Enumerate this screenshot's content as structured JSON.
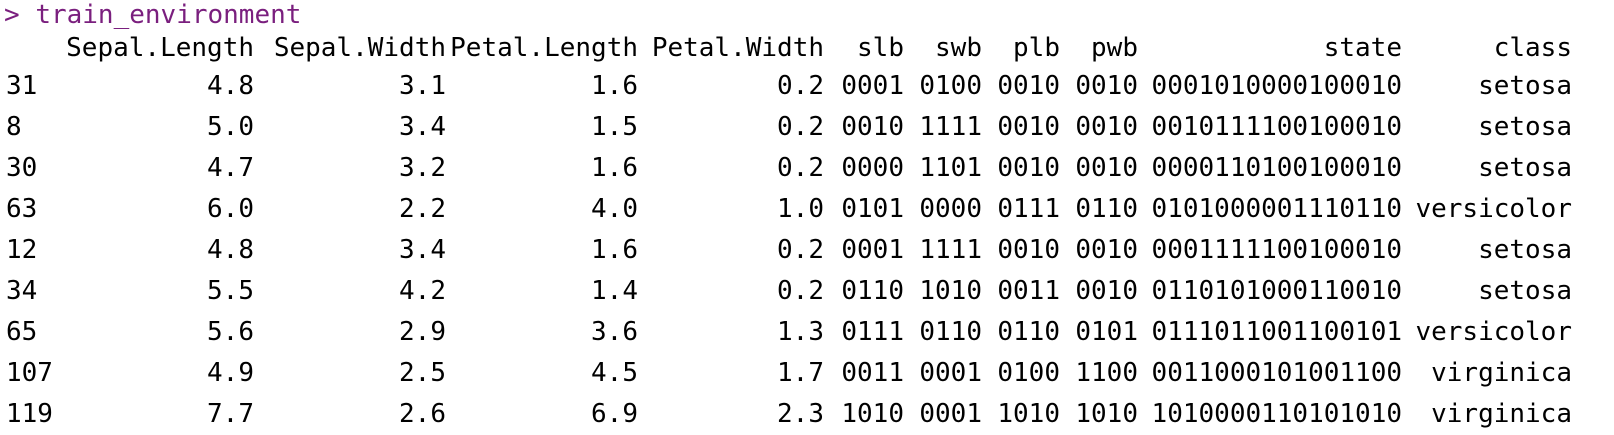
{
  "console": {
    "prompt": ">",
    "command": "train_environment",
    "prompt_color": "#7a1f7e"
  },
  "table": {
    "columns": [
      "",
      "Sepal.Length",
      "Sepal.Width",
      "Petal.Length",
      "Petal.Width",
      "slb",
      "swb",
      "plb",
      "pwb",
      "state",
      "class"
    ],
    "rows": [
      [
        "31",
        "4.8",
        "3.1",
        "1.6",
        "0.2",
        "0001",
        "0100",
        "0010",
        "0010",
        "0001010000100010",
        "setosa"
      ],
      [
        "8",
        "5.0",
        "3.4",
        "1.5",
        "0.2",
        "0010",
        "1111",
        "0010",
        "0010",
        "0010111100100010",
        "setosa"
      ],
      [
        "30",
        "4.7",
        "3.2",
        "1.6",
        "0.2",
        "0000",
        "1101",
        "0010",
        "0010",
        "0000110100100010",
        "setosa"
      ],
      [
        "63",
        "6.0",
        "2.2",
        "4.0",
        "1.0",
        "0101",
        "0000",
        "0111",
        "0110",
        "0101000001110110",
        "versicolor"
      ],
      [
        "12",
        "4.8",
        "3.4",
        "1.6",
        "0.2",
        "0001",
        "1111",
        "0010",
        "0010",
        "0001111100100010",
        "setosa"
      ],
      [
        "34",
        "5.5",
        "4.2",
        "1.4",
        "0.2",
        "0110",
        "1010",
        "0011",
        "0010",
        "0110101000110010",
        "setosa"
      ],
      [
        "65",
        "5.6",
        "2.9",
        "3.6",
        "1.3",
        "0111",
        "0110",
        "0110",
        "0101",
        "0111011001100101",
        "versicolor"
      ],
      [
        "107",
        "4.9",
        "2.5",
        "4.5",
        "1.7",
        "0011",
        "0001",
        "0100",
        "1100",
        "0011000101001100",
        "virginica"
      ],
      [
        "119",
        "7.7",
        "2.6",
        "6.9",
        "2.3",
        "1010",
        "0001",
        "1010",
        "1010",
        "1010000110101010",
        "virginica"
      ]
    ]
  }
}
